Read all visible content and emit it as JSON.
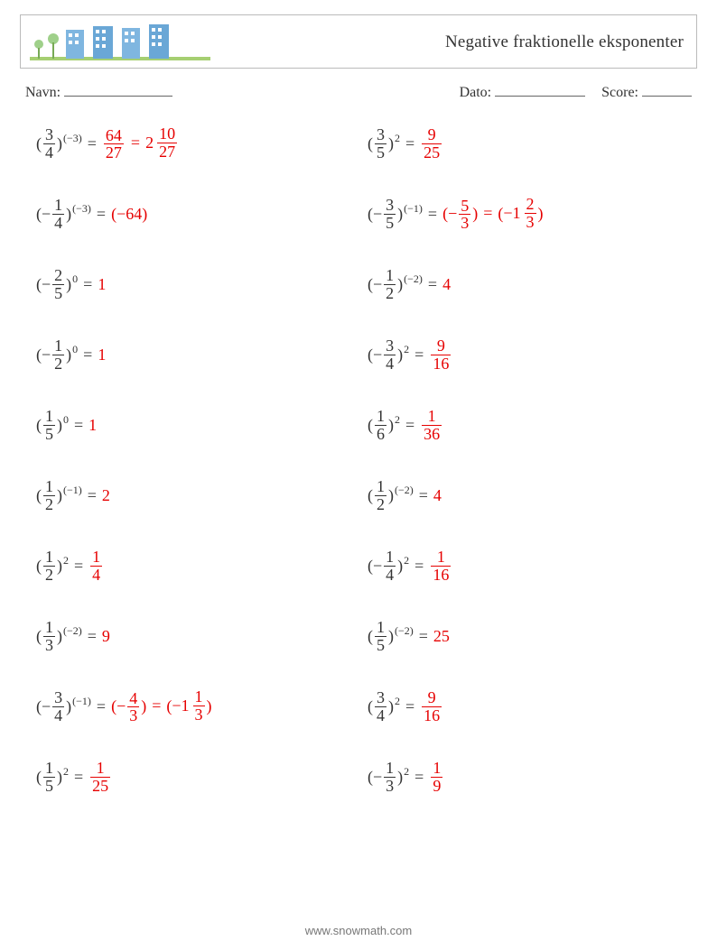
{
  "title": "Negative fraktionelle eksponenter",
  "labels": {
    "name": "Navn:",
    "date": "Dato:",
    "score": "Score:"
  },
  "colors": {
    "answer": "#e60000",
    "text": "#333333",
    "border": "#bbbbbb"
  },
  "footer": "www.snowmath.com",
  "problems": [
    {
      "base": {
        "neg": false,
        "num": "3",
        "den": "4"
      },
      "exp": "(−3)",
      "answer": [
        {
          "t": "frac",
          "num": "64",
          "den": "27"
        },
        {
          "t": "eq"
        },
        {
          "t": "mixed",
          "whole": "2",
          "num": "10",
          "den": "27"
        }
      ]
    },
    {
      "base": {
        "neg": false,
        "num": "3",
        "den": "5"
      },
      "exp": "2",
      "answer": [
        {
          "t": "frac",
          "num": "9",
          "den": "25"
        }
      ]
    },
    {
      "base": {
        "neg": true,
        "num": "1",
        "den": "4"
      },
      "exp": "(−3)",
      "answer": [
        {
          "t": "paren",
          "inner": [
            {
              "t": "text",
              "v": "−64"
            }
          ]
        }
      ]
    },
    {
      "base": {
        "neg": true,
        "num": "3",
        "den": "5"
      },
      "exp": "(−1)",
      "answer": [
        {
          "t": "paren",
          "inner": [
            {
              "t": "text",
              "v": "−"
            },
            {
              "t": "frac",
              "num": "5",
              "den": "3"
            }
          ]
        },
        {
          "t": "eq"
        },
        {
          "t": "paren",
          "inner": [
            {
              "t": "mixed",
              "whole": "−1",
              "num": "2",
              "den": "3"
            }
          ]
        }
      ]
    },
    {
      "base": {
        "neg": true,
        "num": "2",
        "den": "5"
      },
      "exp": "0",
      "answer": [
        {
          "t": "text",
          "v": "1"
        }
      ]
    },
    {
      "base": {
        "neg": true,
        "num": "1",
        "den": "2"
      },
      "exp": "(−2)",
      "answer": [
        {
          "t": "text",
          "v": "4"
        }
      ]
    },
    {
      "base": {
        "neg": true,
        "num": "1",
        "den": "2"
      },
      "exp": "0",
      "answer": [
        {
          "t": "text",
          "v": "1"
        }
      ]
    },
    {
      "base": {
        "neg": true,
        "num": "3",
        "den": "4"
      },
      "exp": "2",
      "answer": [
        {
          "t": "frac",
          "num": "9",
          "den": "16"
        }
      ]
    },
    {
      "base": {
        "neg": false,
        "num": "1",
        "den": "5"
      },
      "exp": "0",
      "answer": [
        {
          "t": "text",
          "v": "1"
        }
      ]
    },
    {
      "base": {
        "neg": false,
        "num": "1",
        "den": "6"
      },
      "exp": "2",
      "answer": [
        {
          "t": "frac",
          "num": "1",
          "den": "36"
        }
      ]
    },
    {
      "base": {
        "neg": false,
        "num": "1",
        "den": "2"
      },
      "exp": "(−1)",
      "answer": [
        {
          "t": "text",
          "v": "2"
        }
      ]
    },
    {
      "base": {
        "neg": false,
        "num": "1",
        "den": "2"
      },
      "exp": "(−2)",
      "answer": [
        {
          "t": "text",
          "v": "4"
        }
      ]
    },
    {
      "base": {
        "neg": false,
        "num": "1",
        "den": "2"
      },
      "exp": "2",
      "answer": [
        {
          "t": "frac",
          "num": "1",
          "den": "4"
        }
      ]
    },
    {
      "base": {
        "neg": true,
        "num": "1",
        "den": "4"
      },
      "exp": "2",
      "answer": [
        {
          "t": "frac",
          "num": "1",
          "den": "16"
        }
      ]
    },
    {
      "base": {
        "neg": false,
        "num": "1",
        "den": "3"
      },
      "exp": "(−2)",
      "answer": [
        {
          "t": "text",
          "v": "9"
        }
      ]
    },
    {
      "base": {
        "neg": false,
        "num": "1",
        "den": "5"
      },
      "exp": "(−2)",
      "answer": [
        {
          "t": "text",
          "v": "25"
        }
      ]
    },
    {
      "base": {
        "neg": true,
        "num": "3",
        "den": "4"
      },
      "exp": "(−1)",
      "answer": [
        {
          "t": "paren",
          "inner": [
            {
              "t": "text",
              "v": "−"
            },
            {
              "t": "frac",
              "num": "4",
              "den": "3"
            }
          ]
        },
        {
          "t": "eq"
        },
        {
          "t": "paren",
          "inner": [
            {
              "t": "mixed",
              "whole": "−1",
              "num": "1",
              "den": "3"
            }
          ]
        }
      ]
    },
    {
      "base": {
        "neg": false,
        "num": "3",
        "den": "4"
      },
      "exp": "2",
      "answer": [
        {
          "t": "frac",
          "num": "9",
          "den": "16"
        }
      ]
    },
    {
      "base": {
        "neg": false,
        "num": "1",
        "den": "5"
      },
      "exp": "2",
      "answer": [
        {
          "t": "frac",
          "num": "1",
          "den": "25"
        }
      ]
    },
    {
      "base": {
        "neg": true,
        "num": "1",
        "den": "3"
      },
      "exp": "2",
      "answer": [
        {
          "t": "frac",
          "num": "1",
          "den": "9"
        }
      ]
    }
  ]
}
